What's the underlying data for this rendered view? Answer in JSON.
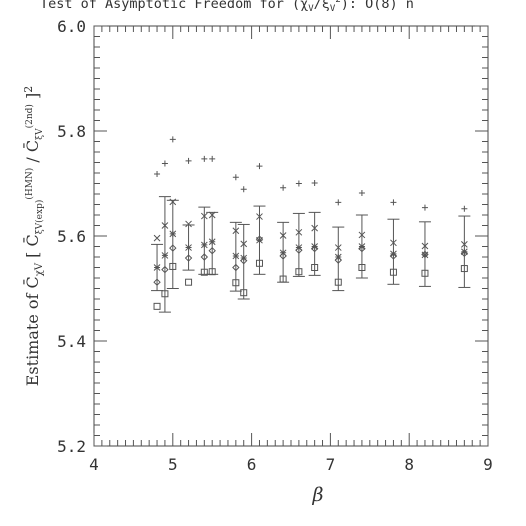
{
  "chart_data": {
    "type": "scatter",
    "title": "Test of Asymptotic Freedom for (χ_V/ξ_V²): O(8) n",
    "xlabel": "β",
    "ylabel": "Estimate of C̄_χV [ C̄_ξV(exp)^(HMN) / C̄_ξV(2nd) ]²",
    "xlim": [
      4,
      9
    ],
    "ylim": [
      5.2,
      6.0
    ],
    "xticks": [
      "4",
      "5",
      "6",
      "7",
      "8",
      "9"
    ],
    "yticks": [
      "5.2",
      "5.4",
      "5.6",
      "5.8",
      "6.0"
    ],
    "grid": false,
    "series": [
      {
        "marker": "plus",
        "x": [
          4.8,
          4.9,
          5.0,
          5.2,
          5.4,
          5.5,
          5.8,
          5.9,
          6.1,
          6.4,
          6.6,
          6.8,
          7.1,
          7.4,
          7.8,
          8.2,
          8.7
        ],
        "values": [
          5.718,
          5.738,
          5.784,
          5.743,
          5.747,
          5.747,
          5.712,
          5.689,
          5.733,
          5.692,
          5.7,
          5.701,
          5.664,
          5.682,
          5.664,
          5.654,
          5.652
        ]
      },
      {
        "marker": "cross",
        "x": [
          4.8,
          4.9,
          5.0,
          5.2,
          5.4,
          5.5,
          5.8,
          5.9,
          6.1,
          6.4,
          6.6,
          6.8,
          7.1,
          7.4,
          7.8,
          8.2,
          8.7
        ],
        "values": [
          5.596,
          5.62,
          5.665,
          5.623,
          5.638,
          5.64,
          5.61,
          5.585,
          5.637,
          5.601,
          5.607,
          5.615,
          5.578,
          5.602,
          5.587,
          5.581,
          5.584
        ]
      },
      {
        "marker": "star",
        "x": [
          4.8,
          4.9,
          5.0,
          5.2,
          5.4,
          5.5,
          5.8,
          5.9,
          6.1,
          6.4,
          6.6,
          6.8,
          7.1,
          7.4,
          7.8,
          8.2,
          8.7
        ],
        "values": [
          5.54,
          5.563,
          5.604,
          5.578,
          5.583,
          5.589,
          5.562,
          5.558,
          5.592,
          5.568,
          5.578,
          5.58,
          5.56,
          5.58,
          5.566,
          5.564,
          5.57
        ]
      },
      {
        "marker": "diamond",
        "x": [
          4.8,
          4.9,
          5.0,
          5.2,
          5.4,
          5.5,
          5.8,
          5.9,
          6.1,
          6.4,
          6.6,
          6.8,
          7.1,
          7.4,
          7.8,
          8.2,
          8.7
        ],
        "values": [
          5.512,
          5.536,
          5.577,
          5.558,
          5.56,
          5.572,
          5.54,
          5.553,
          5.594,
          5.562,
          5.573,
          5.576,
          5.554,
          5.576,
          5.562,
          5.565,
          5.567
        ]
      },
      {
        "marker": "square",
        "x": [
          4.8,
          4.9,
          5.0,
          5.2,
          5.4,
          5.5,
          5.8,
          5.9,
          6.1,
          6.4,
          6.6,
          6.8,
          7.1,
          7.4,
          7.8,
          8.2,
          8.7
        ],
        "values": [
          5.466,
          5.49,
          5.542,
          5.512,
          5.531,
          5.532,
          5.511,
          5.492,
          5.548,
          5.518,
          5.532,
          5.54,
          5.512,
          5.54,
          5.531,
          5.529,
          5.538
        ]
      }
    ],
    "error_bars": {
      "x": [
        4.8,
        4.9,
        5.0,
        5.2,
        5.4,
        5.5,
        5.8,
        5.9,
        6.1,
        6.4,
        6.6,
        6.8,
        7.1,
        7.4,
        7.8,
        8.2,
        8.7
      ],
      "center": [
        5.54,
        5.563,
        5.604,
        5.578,
        5.583,
        5.589,
        5.562,
        5.558,
        5.592,
        5.568,
        5.578,
        5.58,
        5.56,
        5.58,
        5.566,
        5.564,
        5.57
      ],
      "low": [
        5.496,
        5.455,
        5.5,
        5.535,
        5.527,
        5.527,
        5.495,
        5.48,
        5.527,
        5.512,
        5.523,
        5.525,
        5.496,
        5.52,
        5.508,
        5.504,
        5.502
      ],
      "high": [
        5.584,
        5.675,
        5.668,
        5.621,
        5.655,
        5.645,
        5.626,
        5.622,
        5.657,
        5.626,
        5.643,
        5.645,
        5.617,
        5.64,
        5.632,
        5.627,
        5.638
      ]
    }
  }
}
